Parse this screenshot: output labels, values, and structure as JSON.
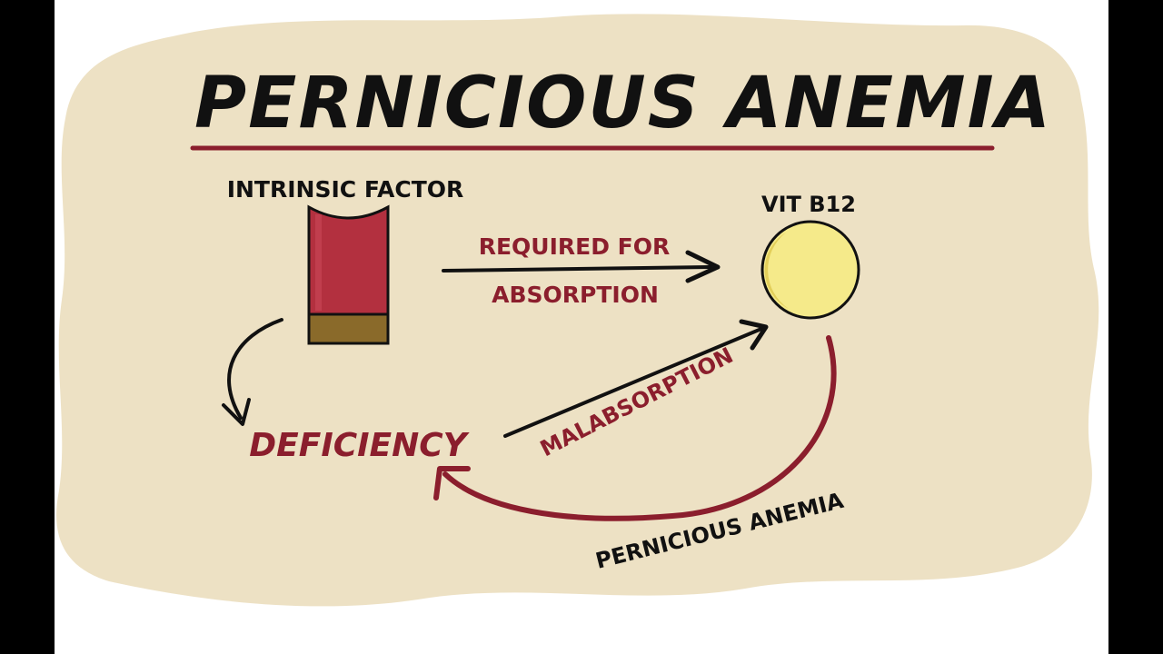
{
  "title": "PERNICIOUS ANEMIA",
  "labels": {
    "intrinsic_factor": "INTRINSIC FACTOR",
    "vit_b12": "VIT B12",
    "required_for": "REQUIRED FOR",
    "absorption": "ABSORPTION",
    "deficiency": "DEFICIENCY",
    "malabsorption": "MALABSORPTION",
    "pernicious_anemia": "PERNICIOUS ANEMIA"
  },
  "colors": {
    "paper": "#ede1c4",
    "ink": "#111111",
    "maroon": "#8b1e2d",
    "if_body": "#b3303f",
    "if_base": "#8a6a2a",
    "b12_fill": "#f5ea8a",
    "b12_shade": "#e3cf5a"
  }
}
